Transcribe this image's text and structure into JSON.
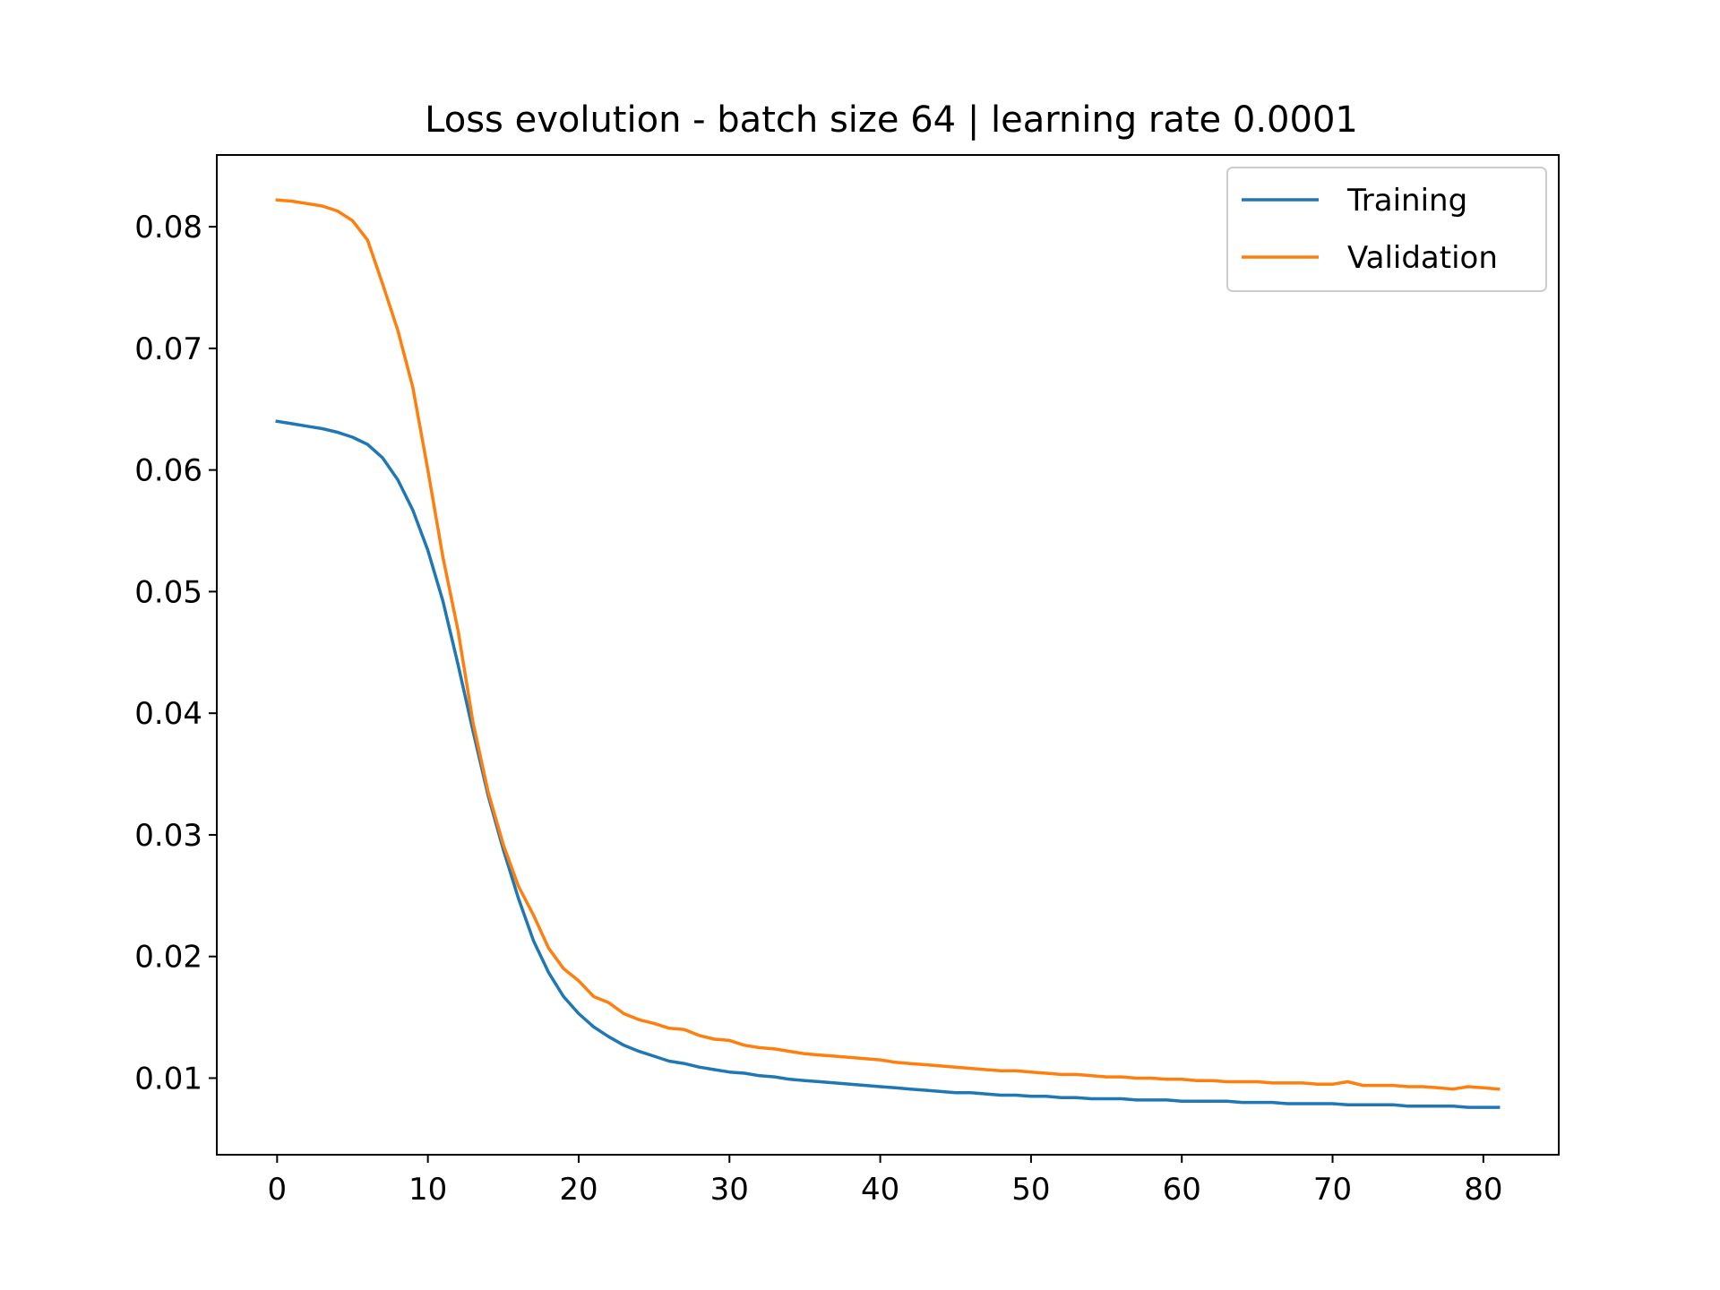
{
  "chart_data": {
    "type": "line",
    "title": "Loss evolution - batch size 64 | learning rate 0.0001",
    "xlabel": "",
    "ylabel": "",
    "xlim": [
      -4,
      85
    ],
    "ylim": [
      0.0037,
      0.0859
    ],
    "xticks": [
      0,
      10,
      20,
      30,
      40,
      50,
      60,
      70,
      80
    ],
    "yticks": [
      0.01,
      0.02,
      0.03,
      0.04,
      0.05,
      0.06,
      0.07,
      0.08
    ],
    "xtick_labels": [
      "0",
      "10",
      "20",
      "30",
      "40",
      "50",
      "60",
      "70",
      "80"
    ],
    "ytick_labels": [
      "0.01",
      "0.02",
      "0.03",
      "0.04",
      "0.05",
      "0.06",
      "0.07",
      "0.08"
    ],
    "grid": false,
    "legend_position": "top-right",
    "series": [
      {
        "name": "Training",
        "color": "#1f77b4",
        "x": [
          0,
          1,
          2,
          3,
          4,
          5,
          6,
          7,
          8,
          9,
          10,
          11,
          12,
          13,
          14,
          15,
          16,
          17,
          18,
          19,
          20,
          21,
          22,
          23,
          24,
          25,
          26,
          27,
          28,
          29,
          30,
          31,
          32,
          33,
          34,
          35,
          36,
          37,
          38,
          39,
          40,
          41,
          42,
          43,
          44,
          45,
          46,
          47,
          48,
          49,
          50,
          51,
          52,
          53,
          54,
          55,
          56,
          57,
          58,
          59,
          60,
          61,
          62,
          63,
          64,
          65,
          66,
          67,
          68,
          69,
          70,
          71,
          72,
          73,
          74,
          75,
          76,
          77,
          78,
          79,
          80,
          81
        ],
        "y": [
          0.064,
          0.0638,
          0.0636,
          0.0634,
          0.0631,
          0.0627,
          0.0621,
          0.061,
          0.0592,
          0.0567,
          0.0534,
          0.0492,
          0.044,
          0.0385,
          0.0332,
          0.0288,
          0.0248,
          0.0213,
          0.0187,
          0.0167,
          0.0153,
          0.0142,
          0.0134,
          0.0127,
          0.0122,
          0.0118,
          0.0114,
          0.0112,
          0.0109,
          0.0107,
          0.0105,
          0.0104,
          0.0102,
          0.0101,
          0.0099,
          0.0098,
          0.0097,
          0.0096,
          0.0095,
          0.0094,
          0.0093,
          0.0092,
          0.0091,
          0.009,
          0.0089,
          0.0088,
          0.0088,
          0.0087,
          0.0086,
          0.0086,
          0.0085,
          0.0085,
          0.0084,
          0.0084,
          0.0083,
          0.0083,
          0.0083,
          0.0082,
          0.0082,
          0.0082,
          0.0081,
          0.0081,
          0.0081,
          0.0081,
          0.008,
          0.008,
          0.008,
          0.0079,
          0.0079,
          0.0079,
          0.0079,
          0.0078,
          0.0078,
          0.0078,
          0.0078,
          0.0077,
          0.0077,
          0.0077,
          0.0077,
          0.0076,
          0.0076,
          0.0076
        ]
      },
      {
        "name": "Validation",
        "color": "#ff7f0e",
        "x": [
          0,
          1,
          2,
          3,
          4,
          5,
          6,
          7,
          8,
          9,
          10,
          11,
          12,
          13,
          14,
          15,
          16,
          17,
          18,
          19,
          20,
          21,
          22,
          23,
          24,
          25,
          26,
          27,
          28,
          29,
          30,
          31,
          32,
          33,
          34,
          35,
          36,
          37,
          38,
          39,
          40,
          41,
          42,
          43,
          44,
          45,
          46,
          47,
          48,
          49,
          50,
          51,
          52,
          53,
          54,
          55,
          56,
          57,
          58,
          59,
          60,
          61,
          62,
          63,
          64,
          65,
          66,
          67,
          68,
          69,
          70,
          71,
          72,
          73,
          74,
          75,
          76,
          77,
          78,
          79,
          80,
          81
        ],
        "y": [
          0.0822,
          0.0821,
          0.0819,
          0.0817,
          0.0813,
          0.0805,
          0.0789,
          0.0753,
          0.0715,
          0.0668,
          0.06,
          0.0528,
          0.0468,
          0.0392,
          0.0335,
          0.0292,
          0.0258,
          0.0234,
          0.0207,
          0.019,
          0.018,
          0.0167,
          0.0162,
          0.0153,
          0.0148,
          0.0145,
          0.0141,
          0.014,
          0.0135,
          0.0132,
          0.0131,
          0.0127,
          0.0125,
          0.0124,
          0.0122,
          0.012,
          0.0119,
          0.0118,
          0.0117,
          0.0116,
          0.0115,
          0.0113,
          0.0112,
          0.0111,
          0.011,
          0.0109,
          0.0108,
          0.0107,
          0.0106,
          0.0106,
          0.0105,
          0.0104,
          0.0103,
          0.0103,
          0.0102,
          0.0101,
          0.0101,
          0.01,
          0.01,
          0.0099,
          0.0099,
          0.0098,
          0.0098,
          0.0097,
          0.0097,
          0.0097,
          0.0096,
          0.0096,
          0.0096,
          0.0095,
          0.0095,
          0.0097,
          0.0094,
          0.0094,
          0.0094,
          0.0093,
          0.0093,
          0.0092,
          0.0091,
          0.0093,
          0.0092,
          0.0091
        ]
      }
    ]
  }
}
